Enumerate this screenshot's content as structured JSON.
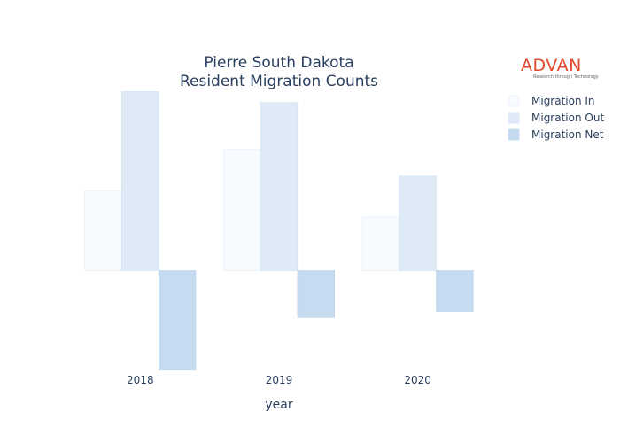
{
  "logo": {
    "word": "ADVAN",
    "tagline": "Research through Technology"
  },
  "colors": {
    "brand": "#e2492a"
  },
  "chart_data": {
    "type": "bar",
    "title_lines": [
      "Pierre South Dakota",
      "Resident Migration Counts"
    ],
    "xlabel": "year",
    "ylabel": "",
    "categories": [
      "2018",
      "2019",
      "2020"
    ],
    "series": [
      {
        "name": "Migration In",
        "values": [
          80,
          122,
          54
        ],
        "color": "#f7fbff",
        "stroke": "#e3edf8"
      },
      {
        "name": "Migration Out",
        "values": [
          180,
          169,
          95
        ],
        "color": "#deebf7",
        "stroke": "#cfe0f2"
      },
      {
        "name": "Migration Net",
        "values": [
          -100,
          -47,
          -41
        ],
        "color": "#c6dbef",
        "stroke": "#b6cfe8"
      }
    ],
    "ylim": [
      -102,
      183
    ],
    "grid": false,
    "show_y_axis": false,
    "legend_position": "top-right"
  }
}
